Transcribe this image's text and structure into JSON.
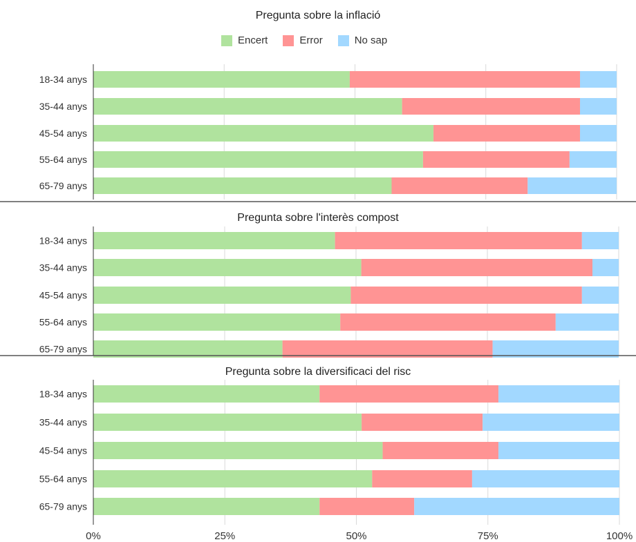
{
  "legend": [
    {
      "label": "Encert",
      "color": "#b0e39e"
    },
    {
      "label": "Error",
      "color": "#ff9494"
    },
    {
      "label": "No sap",
      "color": "#a2d8ff"
    }
  ],
  "x_ticks": [
    "0%",
    "25%",
    "50%",
    "75%",
    "100%"
  ],
  "chart_data": [
    {
      "type": "bar",
      "orientation": "horizontal",
      "stacked": true,
      "title": "Pregunta sobre la inflació",
      "categories": [
        "18-34 anys",
        "35-44 anys",
        "45-54 anys",
        "55-64 anys",
        "65-79 anys"
      ],
      "xlim": [
        0,
        100
      ],
      "series": [
        {
          "name": "Encert",
          "values": [
            49,
            59,
            65,
            63,
            57
          ]
        },
        {
          "name": "Error",
          "values": [
            44,
            34,
            28,
            28,
            26
          ]
        },
        {
          "name": "No sap",
          "values": [
            7,
            7,
            7,
            9,
            17
          ]
        }
      ]
    },
    {
      "type": "bar",
      "orientation": "horizontal",
      "stacked": true,
      "title": "Pregunta sobre l'interès compost",
      "categories": [
        "18-34 anys",
        "35-44 anys",
        "45-54 anys",
        "55-64 anys",
        "65-79 anys"
      ],
      "xlim": [
        0,
        100
      ],
      "series": [
        {
          "name": "Encert",
          "values": [
            46,
            51,
            49,
            47,
            36
          ]
        },
        {
          "name": "Error",
          "values": [
            47,
            44,
            44,
            41,
            40
          ]
        },
        {
          "name": "No sap",
          "values": [
            7,
            5,
            7,
            12,
            24
          ]
        }
      ]
    },
    {
      "type": "bar",
      "orientation": "horizontal",
      "stacked": true,
      "title": "Pregunta sobre la diversificaci del risc",
      "categories": [
        "18-34 anys",
        "35-44 anys",
        "45-54 anys",
        "55-64 anys",
        "65-79 anys"
      ],
      "xlim": [
        0,
        100
      ],
      "series": [
        {
          "name": "Encert",
          "values": [
            43,
            51,
            55,
            53,
            43
          ]
        },
        {
          "name": "Error",
          "values": [
            34,
            23,
            22,
            19,
            18
          ]
        },
        {
          "name": "No sap",
          "values": [
            23,
            26,
            23,
            28,
            39
          ]
        }
      ]
    }
  ]
}
